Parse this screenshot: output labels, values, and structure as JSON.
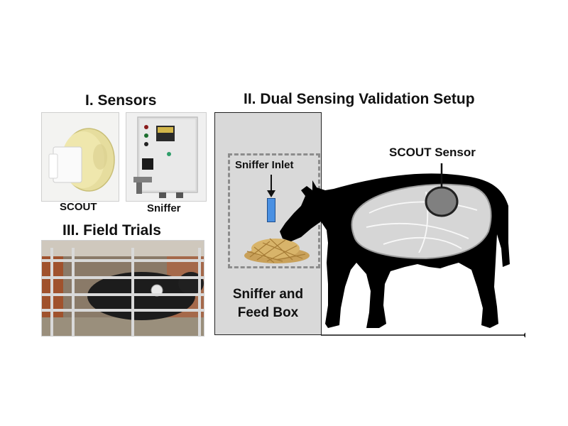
{
  "sections": {
    "sensors": {
      "title": "I. Sensors",
      "scout_caption": "SCOUT",
      "sniffer_caption": "Sniffer"
    },
    "setup": {
      "title": "II. Dual Sensing Validation Setup",
      "sniffer_inlet_label": "Sniffer Inlet",
      "scout_sensor_label": "SCOUT Sensor",
      "feed_box_label_line1": "Sniffer and",
      "feed_box_label_line2": "Feed Box"
    },
    "field_trials": {
      "title": "III. Field Trials"
    }
  },
  "colors": {
    "feed_box": "#d9d9d9",
    "dashed_outline": "#8c8c8c",
    "inlet": "#4a90e2",
    "cow": "#000000",
    "rumen": "#d6d6d6",
    "sensor_disc": "#808080",
    "hay": "#c9a15a"
  },
  "icons": {
    "scout_device": "cylindrical-sensor-icon",
    "sniffer_device": "electrical-box-icon",
    "cow": "cow-silhouette-icon",
    "hay": "hay-pile-icon"
  }
}
